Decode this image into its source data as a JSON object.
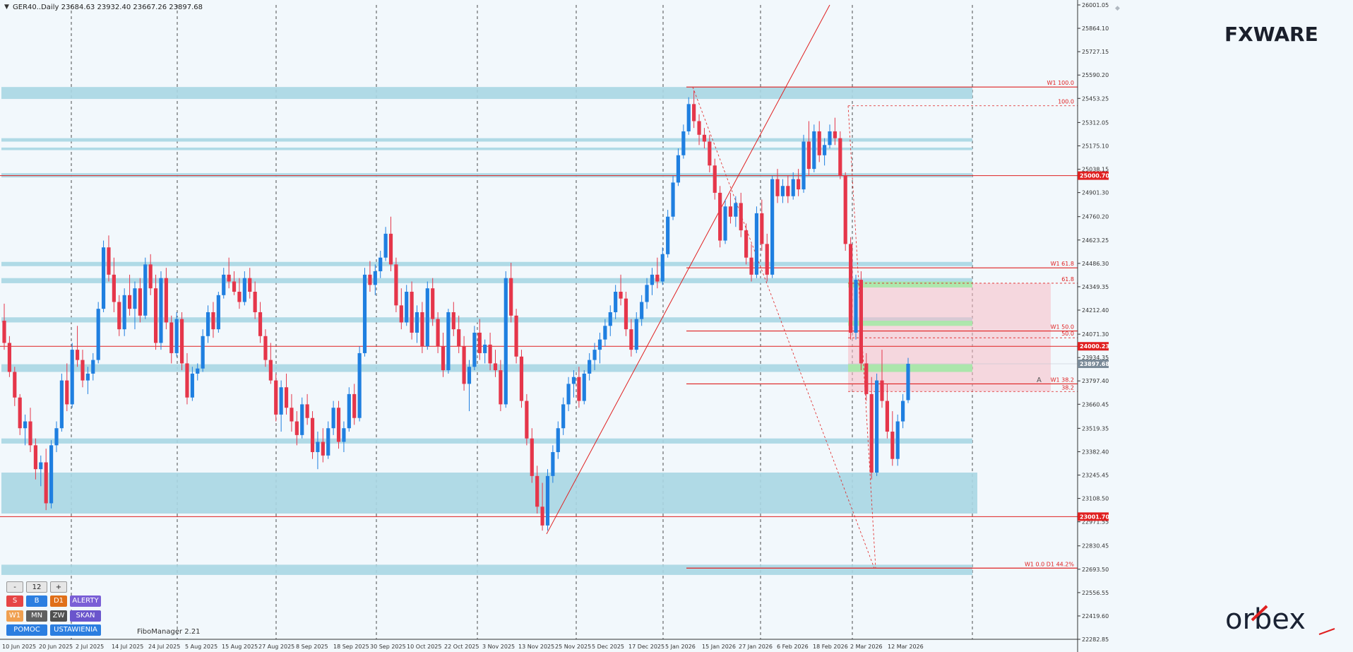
{
  "header": {
    "info": "GER40..Daily  23684.63 23932.40 23667.26 23897.68"
  },
  "brand": {
    "fxware": "FXWARE",
    "orbex": "orbex"
  },
  "footer": {
    "plugin": "FiboManager 2.21"
  },
  "controls": {
    "minus": "-",
    "count": "12",
    "plus": "+",
    "s": "S",
    "b": "B",
    "d1": "D1",
    "alerty": "ALERTY",
    "w1": "W1",
    "mn": "MN",
    "zw": "ZW",
    "skan": "SKAN",
    "pomoc": "POMOC",
    "ustawienia": "USTAWIENIA",
    "colors": {
      "s": "#e64545",
      "b": "#2b7ee0",
      "d1": "#e0701a",
      "alerty": "#7a5fd6",
      "w1": "#f0a050",
      "mn": "#606060",
      "zw": "#505050",
      "skan": "#6a55cc",
      "pomoc": "#2b7ee0",
      "ustawienia": "#2b7ee0"
    }
  },
  "chart_data": {
    "type": "candlestick",
    "symbol": "GER40..",
    "timeframe": "Daily",
    "ohlc_last": {
      "open": 23684.63,
      "high": 23932.4,
      "low": 23667.26,
      "close": 23897.68
    },
    "ylim": [
      22282.85,
      26001.05
    ],
    "y_ticks": [
      "26001.05",
      "25864.10",
      "25727.15",
      "25590.20",
      "25453.25",
      "25312.05",
      "25175.10",
      "25038.15",
      "24901.30",
      "24760.20",
      "24623.25",
      "24486.30",
      "24349.35",
      "24212.40",
      "24071.30",
      "23934.35",
      "23797.40",
      "23660.45",
      "23519.35",
      "23382.40",
      "23245.45",
      "23108.50",
      "22971.55",
      "22830.45",
      "22693.50",
      "22556.55",
      "22419.60",
      "22282.85"
    ],
    "x_ticks": [
      "10 Jun 2025",
      "20 Jun 2025",
      "2 Jul 2025",
      "14 Jul 2025",
      "24 Jul 2025",
      "5 Aug 2025",
      "15 Aug 2025",
      "27 Aug 2025",
      "8 Sep 2025",
      "18 Sep 2025",
      "30 Sep 2025",
      "10 Oct 2025",
      "22 Oct 2025",
      "3 Nov 2025",
      "13 Nov 2025",
      "25 Nov 2025",
      "5 Dec 2025",
      "17 Dec 2025",
      "5 Jan 2026",
      "15 Jan 2026",
      "27 Jan 2026",
      "6 Feb 2026",
      "18 Feb 2026",
      "2 Mar 2026",
      "12 Mar 2026"
    ],
    "price_tags": [
      {
        "label": "25000.70",
        "value": 25000.7,
        "color": "#e02020"
      },
      {
        "label": "24000.23",
        "value": 24000.23,
        "color": "#e02020"
      },
      {
        "label": "23897.68",
        "value": 23897.68,
        "color": "#7a8a98"
      },
      {
        "label": "23001.70",
        "value": 23001.7,
        "color": "#e02020"
      }
    ],
    "horizontal_lines": [
      25000.7,
      24000.23,
      23001.7
    ],
    "fib_levels": [
      {
        "label": "W1 100.0",
        "value": 25520
      },
      {
        "label": "100.0",
        "value": 25410
      },
      {
        "label": "W1 61.8",
        "value": 24460
      },
      {
        "label": "61.8",
        "value": 24370
      },
      {
        "label": "W1 50.0",
        "value": 24090
      },
      {
        "label": "50.0",
        "value": 24050
      },
      {
        "label": "W1 38.2",
        "value": 23780
      },
      {
        "label": "38.2",
        "value": 23735
      },
      {
        "label": "W1 0.0    D1 44.2%",
        "value": 22700
      }
    ],
    "zones": [
      {
        "from": 25450,
        "to": 25520
      },
      {
        "from": 25200,
        "to": 25220
      },
      {
        "from": 25150,
        "to": 25165
      },
      {
        "from": 24990,
        "to": 25015
      },
      {
        "from": 24470,
        "to": 24495
      },
      {
        "from": 24370,
        "to": 24400
      },
      {
        "from": 24140,
        "to": 24170
      },
      {
        "from": 23850,
        "to": 23895
      },
      {
        "from": 23430,
        "to": 23460
      },
      {
        "from": 23020,
        "to": 23260
      },
      {
        "from": 22660,
        "to": 22720
      }
    ],
    "candles": [
      [
        24150,
        24250,
        23980,
        24020
      ],
      [
        24020,
        24060,
        23820,
        23850
      ],
      [
        23850,
        23880,
        23650,
        23700
      ],
      [
        23700,
        23720,
        23480,
        23520
      ],
      [
        23520,
        23600,
        23420,
        23560
      ],
      [
        23560,
        23640,
        23380,
        23420
      ],
      [
        23420,
        23460,
        23220,
        23280
      ],
      [
        23280,
        23360,
        23180,
        23320
      ],
      [
        23320,
        23400,
        23040,
        23080
      ],
      [
        23080,
        23450,
        23050,
        23420
      ],
      [
        23420,
        23560,
        23380,
        23520
      ],
      [
        23520,
        23840,
        23500,
        23800
      ],
      [
        23800,
        23900,
        23620,
        23660
      ],
      [
        23660,
        24020,
        23640,
        23980
      ],
      [
        23980,
        24120,
        23880,
        23920
      ],
      [
        23920,
        23980,
        23760,
        23800
      ],
      [
        23800,
        23880,
        23720,
        23840
      ],
      [
        23840,
        23960,
        23800,
        23920
      ],
      [
        23920,
        24260,
        23900,
        24220
      ],
      [
        24220,
        24620,
        24200,
        24580
      ],
      [
        24580,
        24650,
        24380,
        24420
      ],
      [
        24420,
        24520,
        24200,
        24260
      ],
      [
        24260,
        24300,
        24060,
        24100
      ],
      [
        24100,
        24340,
        24060,
        24300
      ],
      [
        24300,
        24420,
        24180,
        24220
      ],
      [
        24220,
        24380,
        24100,
        24340
      ],
      [
        24340,
        24400,
        24140,
        24180
      ],
      [
        24180,
        24520,
        24160,
        24480
      ],
      [
        24480,
        24540,
        24300,
        24340
      ],
      [
        24340,
        24420,
        23980,
        24020
      ],
      [
        24020,
        24440,
        23980,
        24400
      ],
      [
        24400,
        24460,
        24100,
        24140
      ],
      [
        24140,
        24180,
        23900,
        23960
      ],
      [
        23960,
        24200,
        23940,
        24160
      ],
      [
        24160,
        24200,
        23860,
        23900
      ],
      [
        23900,
        23960,
        23660,
        23700
      ],
      [
        23700,
        23880,
        23680,
        23840
      ],
      [
        23840,
        23900,
        23800,
        23870
      ],
      [
        23870,
        24100,
        23850,
        24060
      ],
      [
        24060,
        24240,
        24020,
        24200
      ],
      [
        24200,
        24260,
        24050,
        24100
      ],
      [
        24100,
        24320,
        24080,
        24300
      ],
      [
        24300,
        24460,
        24280,
        24420
      ],
      [
        24420,
        24520,
        24340,
        24380
      ],
      [
        24380,
        24440,
        24300,
        24320
      ],
      [
        24320,
        24400,
        24220,
        24260
      ],
      [
        24260,
        24440,
        24240,
        24400
      ],
      [
        24400,
        24460,
        24280,
        24320
      ],
      [
        24320,
        24380,
        24160,
        24200
      ],
      [
        24200,
        24260,
        24020,
        24060
      ],
      [
        24060,
        24100,
        23880,
        23920
      ],
      [
        23920,
        24020,
        23780,
        23800
      ],
      [
        23800,
        23840,
        23560,
        23600
      ],
      [
        23600,
        23800,
        23500,
        23760
      ],
      [
        23760,
        23840,
        23600,
        23640
      ],
      [
        23640,
        23720,
        23500,
        23560
      ],
      [
        23560,
        23620,
        23420,
        23480
      ],
      [
        23480,
        23700,
        23460,
        23660
      ],
      [
        23660,
        23720,
        23540,
        23580
      ],
      [
        23580,
        23620,
        23340,
        23380
      ],
      [
        23380,
        23500,
        23280,
        23440
      ],
      [
        23440,
        23520,
        23320,
        23360
      ],
      [
        23360,
        23560,
        23340,
        23520
      ],
      [
        23520,
        23680,
        23480,
        23640
      ],
      [
        23640,
        23680,
        23400,
        23440
      ],
      [
        23440,
        23560,
        23380,
        23520
      ],
      [
        23520,
        23760,
        23500,
        23720
      ],
      [
        23720,
        23780,
        23540,
        23580
      ],
      [
        23580,
        24000,
        23560,
        23960
      ],
      [
        23960,
        24460,
        23940,
        24420
      ],
      [
        24420,
        24500,
        24320,
        24360
      ],
      [
        24360,
        24480,
        24300,
        24440
      ],
      [
        24440,
        24560,
        24400,
        24520
      ],
      [
        24520,
        24700,
        24500,
        24660
      ],
      [
        24660,
        24760,
        24440,
        24480
      ],
      [
        24480,
        24520,
        24200,
        24240
      ],
      [
        24240,
        24340,
        24100,
        24140
      ],
      [
        24140,
        24360,
        24120,
        24320
      ],
      [
        24320,
        24380,
        24040,
        24080
      ],
      [
        24080,
        24240,
        24020,
        24200
      ],
      [
        24200,
        24260,
        23960,
        24000
      ],
      [
        24000,
        24380,
        23980,
        24340
      ],
      [
        24340,
        24400,
        24120,
        24160
      ],
      [
        24160,
        24200,
        23960,
        24000
      ],
      [
        24000,
        24080,
        23820,
        23860
      ],
      [
        23860,
        24220,
        23840,
        24200
      ],
      [
        24200,
        24260,
        24060,
        24100
      ],
      [
        24100,
        24180,
        23960,
        24000
      ],
      [
        24000,
        24060,
        23740,
        23780
      ],
      [
        23780,
        23920,
        23620,
        23880
      ],
      [
        23880,
        24120,
        23860,
        24080
      ],
      [
        24080,
        24160,
        23920,
        23960
      ],
      [
        23960,
        24040,
        23900,
        24010
      ],
      [
        24010,
        24080,
        23860,
        23900
      ],
      [
        23900,
        23980,
        23820,
        23860
      ],
      [
        23860,
        23920,
        23620,
        23660
      ],
      [
        23660,
        24440,
        23640,
        24400
      ],
      [
        24400,
        24490,
        24140,
        24180
      ],
      [
        24180,
        24220,
        23900,
        23940
      ],
      [
        23940,
        23980,
        23640,
        23680
      ],
      [
        23680,
        23720,
        23420,
        23460
      ],
      [
        23460,
        23520,
        23200,
        23240
      ],
      [
        23240,
        23300,
        23020,
        23060
      ],
      [
        23060,
        23200,
        22920,
        22950
      ],
      [
        22950,
        23280,
        22920,
        23240
      ],
      [
        23240,
        23420,
        23200,
        23380
      ],
      [
        23380,
        23560,
        23340,
        23520
      ],
      [
        23520,
        23700,
        23480,
        23660
      ],
      [
        23660,
        23820,
        23620,
        23780
      ],
      [
        23780,
        23860,
        23700,
        23820
      ],
      [
        23820,
        23880,
        23640,
        23680
      ],
      [
        23680,
        23860,
        23660,
        23840
      ],
      [
        23840,
        23960,
        23800,
        23920
      ],
      [
        23920,
        24020,
        23860,
        23980
      ],
      [
        23980,
        24080,
        23900,
        24040
      ],
      [
        24040,
        24160,
        24000,
        24120
      ],
      [
        24120,
        24240,
        24060,
        24200
      ],
      [
        24200,
        24360,
        24160,
        24320
      ],
      [
        24320,
        24420,
        24240,
        24280
      ],
      [
        24280,
        24320,
        24060,
        24100
      ],
      [
        24100,
        24160,
        23940,
        23980
      ],
      [
        23980,
        24200,
        23960,
        24160
      ],
      [
        24160,
        24300,
        24120,
        24260
      ],
      [
        24260,
        24400,
        24220,
        24360
      ],
      [
        24360,
        24460,
        24300,
        24420
      ],
      [
        24420,
        24520,
        24340,
        24380
      ],
      [
        24380,
        24580,
        24360,
        24540
      ],
      [
        24540,
        24800,
        24520,
        24760
      ],
      [
        24760,
        25000,
        24740,
        24960
      ],
      [
        24960,
        25160,
        24940,
        25120
      ],
      [
        25120,
        25300,
        25100,
        25260
      ],
      [
        25260,
        25460,
        25240,
        25420
      ],
      [
        25420,
        25500,
        25280,
        25320
      ],
      [
        25320,
        25360,
        25180,
        25240
      ],
      [
        25240,
        25280,
        25160,
        25200
      ],
      [
        25200,
        25240,
        25020,
        25060
      ],
      [
        25060,
        25100,
        24860,
        24900
      ],
      [
        24900,
        24940,
        24580,
        24620
      ],
      [
        24620,
        24860,
        24600,
        24820
      ],
      [
        24820,
        24900,
        24720,
        24760
      ],
      [
        24760,
        24880,
        24700,
        24840
      ],
      [
        24840,
        24900,
        24640,
        24680
      ],
      [
        24680,
        24720,
        24480,
        24520
      ],
      [
        24520,
        24600,
        24380,
        24420
      ],
      [
        24420,
        24820,
        24400,
        24780
      ],
      [
        24780,
        24860,
        24560,
        24600
      ],
      [
        24600,
        24660,
        24380,
        24420
      ],
      [
        24420,
        25000,
        24400,
        24980
      ],
      [
        24980,
        25040,
        24840,
        24880
      ],
      [
        24880,
        24980,
        24840,
        24940
      ],
      [
        24940,
        25000,
        24840,
        24880
      ],
      [
        24880,
        25020,
        24860,
        24980
      ],
      [
        24980,
        25040,
        24880,
        24920
      ],
      [
        24920,
        25240,
        24900,
        25200
      ],
      [
        25200,
        25320,
        25000,
        25040
      ],
      [
        25040,
        25300,
        25020,
        25260
      ],
      [
        25260,
        25320,
        25080,
        25120
      ],
      [
        25120,
        25220,
        25060,
        25180
      ],
      [
        25180,
        25300,
        25160,
        25260
      ],
      [
        25260,
        25340,
        25180,
        25220
      ],
      [
        25220,
        25260,
        24980,
        25000
      ],
      [
        25000,
        25020,
        24560,
        24600
      ],
      [
        24600,
        24640,
        24040,
        24080
      ],
      [
        24080,
        24420,
        24040,
        24390
      ],
      [
        24390,
        24440,
        23860,
        23900
      ],
      [
        23900,
        23960,
        23680,
        23720
      ],
      [
        23720,
        23820,
        23220,
        23260
      ],
      [
        23260,
        23840,
        23240,
        23800
      ],
      [
        23800,
        23980,
        23640,
        23680
      ],
      [
        23680,
        23780,
        23460,
        23500
      ],
      [
        23500,
        23620,
        23300,
        23340
      ],
      [
        23340,
        23600,
        23300,
        23560
      ],
      [
        23560,
        23720,
        23520,
        23680
      ],
      [
        23684.63,
        23932.4,
        23667.26,
        23897.68
      ]
    ]
  }
}
